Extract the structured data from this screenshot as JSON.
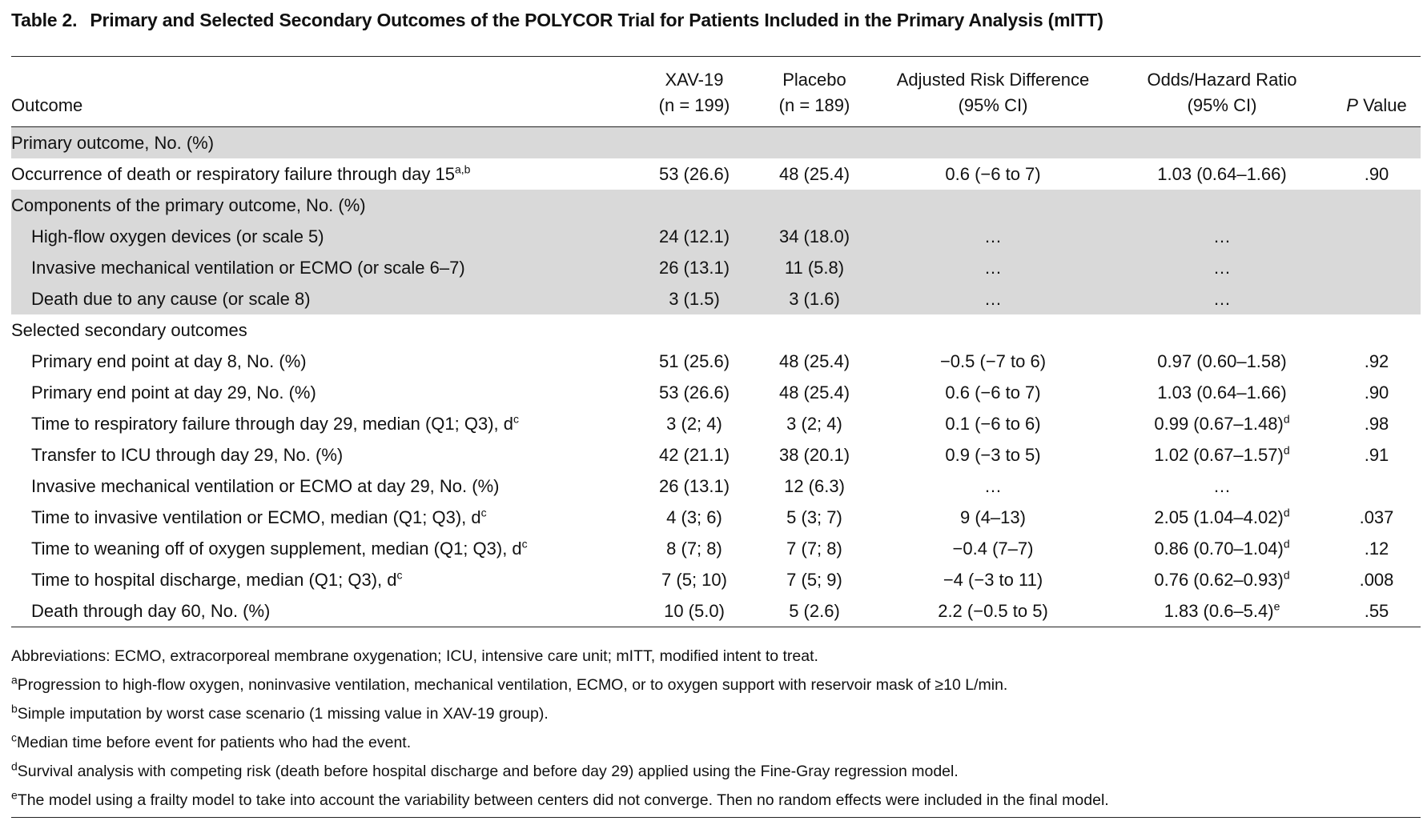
{
  "title": {
    "label": "Table 2.",
    "text": "Primary and Selected Secondary Outcomes of the POLYCOR Trial for Patients Included in the Primary Analysis (mITT)"
  },
  "header": {
    "outcome": "Outcome",
    "xav": [
      "XAV-19",
      "(n = 199)"
    ],
    "placebo": [
      "Placebo",
      "(n = 189)"
    ],
    "ard": [
      "Adjusted Risk Difference",
      "(95% CI)"
    ],
    "ratio": [
      "Odds/Hazard Ratio",
      "(95% CI)"
    ],
    "pvalue_italic": "P",
    "pvalue_rest": " Value"
  },
  "rows": [
    {
      "name": "Primary outcome, No. (%)",
      "sup": "",
      "xav": "",
      "placebo": "",
      "ard": "",
      "ratio": "",
      "ratio_sup": "",
      "p": ""
    },
    {
      "name": "Occurrence of death or respiratory failure through day 15",
      "sup": "a,b",
      "xav": "53 (26.6)",
      "placebo": "48 (25.4)",
      "ard": "0.6 (−6 to 7)",
      "ratio": "1.03 (0.64–1.66)",
      "ratio_sup": "",
      "p": ".90"
    },
    {
      "name": "Components of the primary outcome, No. (%)",
      "sup": "",
      "xav": "",
      "placebo": "",
      "ard": "",
      "ratio": "",
      "ratio_sup": "",
      "p": ""
    },
    {
      "name": "High-flow oxygen devices (or scale 5)",
      "sup": "",
      "xav": "24 (12.1)",
      "placebo": "34 (18.0)",
      "ard": "…",
      "ratio": "…",
      "ratio_sup": "",
      "p": ""
    },
    {
      "name": "Invasive mechanical ventilation or ECMO (or scale 6–7)",
      "sup": "",
      "xav": "26 (13.1)",
      "placebo": "11 (5.8)",
      "ard": "…",
      "ratio": "…",
      "ratio_sup": "",
      "p": ""
    },
    {
      "name": "Death due to any cause (or scale 8)",
      "sup": "",
      "xav": "3 (1.5)",
      "placebo": "3 (1.6)",
      "ard": "…",
      "ratio": "…",
      "ratio_sup": "",
      "p": ""
    },
    {
      "name": "Selected secondary outcomes",
      "sup": "",
      "xav": "",
      "placebo": "",
      "ard": "",
      "ratio": "",
      "ratio_sup": "",
      "p": ""
    },
    {
      "name": "Primary end point at day 8, No. (%)",
      "sup": "",
      "xav": "51 (25.6)",
      "placebo": "48 (25.4)",
      "ard": "−0.5 (−7 to 6)",
      "ratio": "0.97 (0.60–1.58)",
      "ratio_sup": "",
      "p": ".92"
    },
    {
      "name": "Primary end point at day 29, No. (%)",
      "sup": "",
      "xav": "53 (26.6)",
      "placebo": "48 (25.4)",
      "ard": "0.6 (−6 to 7)",
      "ratio": "1.03 (0.64–1.66)",
      "ratio_sup": "",
      "p": ".90"
    },
    {
      "name": "Time to respiratory failure through day 29, median (Q1; Q3), d",
      "sup": "c",
      "xav": "3 (2; 4)",
      "placebo": "3 (2; 4)",
      "ard": "0.1 (−6 to 6)",
      "ratio": "0.99 (0.67–1.48)",
      "ratio_sup": "d",
      "p": ".98"
    },
    {
      "name": "Transfer to ICU through day 29, No. (%)",
      "sup": "",
      "xav": "42 (21.1)",
      "placebo": "38 (20.1)",
      "ard": "0.9 (−3 to 5)",
      "ratio": "1.02 (0.67–1.57)",
      "ratio_sup": "d",
      "p": ".91"
    },
    {
      "name": "Invasive mechanical ventilation or ECMO at day 29, No. (%)",
      "sup": "",
      "xav": "26 (13.1)",
      "placebo": "12 (6.3)",
      "ard": "…",
      "ratio": "…",
      "ratio_sup": "",
      "p": ""
    },
    {
      "name": "Time to invasive ventilation or ECMO, median (Q1; Q3), d",
      "sup": "c",
      "xav": "4 (3; 6)",
      "placebo": "5 (3; 7)",
      "ard": "9 (4–13)",
      "ratio": "2.05 (1.04–4.02)",
      "ratio_sup": "d",
      "p": ".037"
    },
    {
      "name": "Time to weaning off of oxygen supplement, median (Q1; Q3), d",
      "sup": "c",
      "xav": "8 (7; 8)",
      "placebo": "7 (7; 8)",
      "ard": "−0.4 (7–7)",
      "ratio": "0.86 (0.70–1.04)",
      "ratio_sup": "d",
      "p": ".12"
    },
    {
      "name": "Time to hospital discharge, median (Q1; Q3), d",
      "sup": "c",
      "xav": "7 (5; 10)",
      "placebo": "7 (5; 9)",
      "ard": "−4 (−3 to 11)",
      "ratio": "0.76 (0.62–0.93)",
      "ratio_sup": "d",
      "p": ".008"
    },
    {
      "name": "Death through day 60, No. (%)",
      "sup": "",
      "xav": "10 (5.0)",
      "placebo": "5 (2.6)",
      "ard": "2.2 (−0.5 to 5)",
      "ratio": "1.83 (0.6–5.4)",
      "ratio_sup": "e",
      "p": ".55"
    }
  ],
  "notes": {
    "abbrev": "Abbreviations: ECMO, extracorporeal membrane oxygenation; ICU, intensive care unit; mITT, modified intent to treat.",
    "a_mark": "a",
    "a": "Progression to high-flow oxygen, noninvasive ventilation, mechanical ventilation, ECMO, or to oxygen support with reservoir mask of ≥10 L/min.",
    "b_mark": "b",
    "b": "Simple imputation by worst case scenario (1 missing value in XAV-19 group).",
    "c_mark": "c",
    "c": "Median time before event for patients who had the event.",
    "d_mark": "d",
    "d": "Survival analysis with competing risk (death before hospital discharge and before day 29) applied using the Fine-Gray regression model.",
    "e_mark": "e",
    "e": "The model using a frailty model to take into account the variability between centers did not converge. Then no random effects were included in the final model."
  }
}
